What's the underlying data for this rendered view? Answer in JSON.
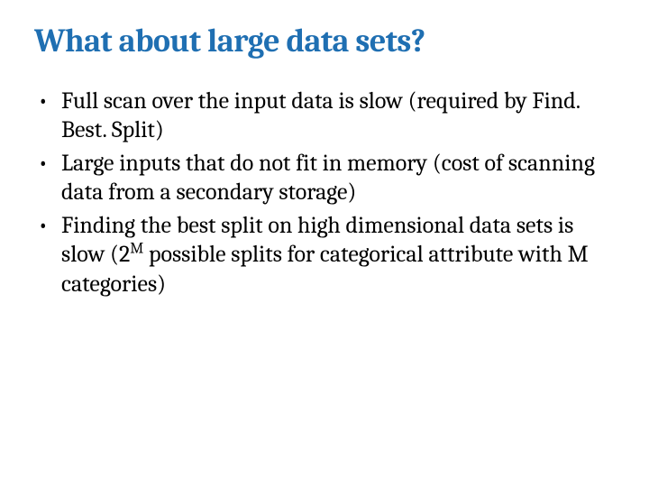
{
  "slide": {
    "title_text": "What about large data sets?",
    "title_color": "#1f6fb2",
    "title_fontsize": 36,
    "body_fontsize": 26,
    "body_color": "#000000",
    "background_color": "#ffffff",
    "bullets": [
      {
        "segments": [
          {
            "text": "Full scan over the input data is slow (required by Find. Best. Split)"
          }
        ]
      },
      {
        "segments": [
          {
            "text": "Large inputs that do not fit in memory (cost of scanning data from a secondary storage)"
          }
        ]
      },
      {
        "segments": [
          {
            "text": "Finding the best split on high dimensional data sets is slow (2"
          },
          {
            "text": "M",
            "sup": true
          },
          {
            "text": " possible splits for categorical attribute with M categories)"
          }
        ]
      }
    ]
  }
}
